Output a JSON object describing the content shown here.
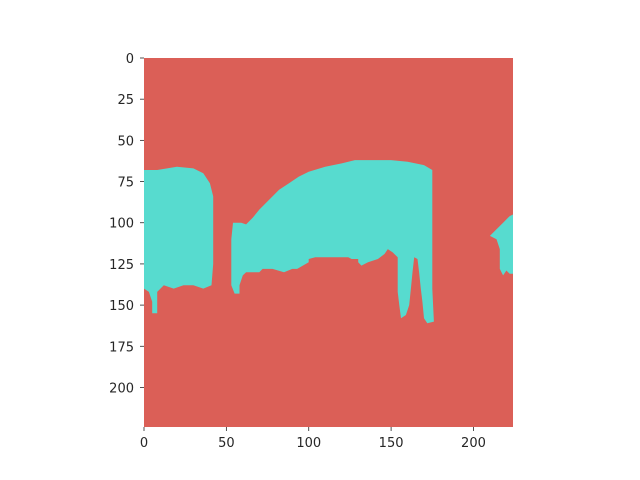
{
  "chart_data": {
    "type": "heatmap",
    "title": "",
    "xlabel": "",
    "ylabel": "",
    "xlim": [
      0,
      224
    ],
    "ylim": [
      224,
      0
    ],
    "grid": false,
    "legend": "none",
    "x_ticks": [
      0,
      50,
      100,
      150,
      200
    ],
    "y_ticks": [
      0,
      25,
      50,
      75,
      100,
      125,
      150,
      175,
      200
    ],
    "classes": [
      {
        "value": 0,
        "color": "#db5f57"
      },
      {
        "value": 1,
        "color": "#57dbcf"
      }
    ],
    "regions": [
      {
        "class": 1,
        "polygon": [
          [
            0,
            68
          ],
          [
            8,
            68
          ],
          [
            14,
            67
          ],
          [
            20,
            66
          ],
          [
            30,
            67
          ],
          [
            36,
            70
          ],
          [
            40,
            76
          ],
          [
            42,
            84
          ],
          [
            42,
            100
          ],
          [
            42,
            125
          ],
          [
            41,
            138
          ],
          [
            36,
            140
          ],
          [
            30,
            138
          ],
          [
            24,
            138
          ],
          [
            18,
            140
          ],
          [
            12,
            138
          ],
          [
            8,
            142
          ],
          [
            8,
            155
          ],
          [
            5,
            155
          ],
          [
            5,
            148
          ],
          [
            3,
            142
          ],
          [
            0,
            140
          ]
        ]
      },
      {
        "class": 1,
        "polygon": [
          [
            54,
            100
          ],
          [
            59,
            100
          ],
          [
            62,
            101
          ],
          [
            66,
            97
          ],
          [
            70,
            92
          ],
          [
            74,
            88
          ],
          [
            78,
            84
          ],
          [
            82,
            80
          ],
          [
            88,
            76
          ],
          [
            94,
            72
          ],
          [
            100,
            69
          ],
          [
            110,
            66
          ],
          [
            120,
            64
          ],
          [
            128,
            62
          ],
          [
            140,
            62
          ],
          [
            150,
            62
          ],
          [
            160,
            63
          ],
          [
            170,
            65
          ],
          [
            175,
            68
          ],
          [
            175,
            100
          ],
          [
            175,
            140
          ],
          [
            176,
            160
          ],
          [
            172,
            161
          ],
          [
            170,
            158
          ],
          [
            169,
            148
          ],
          [
            168,
            140
          ],
          [
            167,
            130
          ],
          [
            166,
            122
          ],
          [
            164,
            121
          ],
          [
            163,
            130
          ],
          [
            162,
            140
          ],
          [
            161,
            150
          ],
          [
            159,
            156
          ],
          [
            156,
            158
          ],
          [
            155,
            150
          ],
          [
            154,
            142
          ],
          [
            154,
            130
          ],
          [
            154,
            121
          ],
          [
            151,
            118
          ],
          [
            148,
            116
          ],
          [
            146,
            119
          ],
          [
            142,
            122
          ],
          [
            136,
            124
          ],
          [
            132,
            126
          ],
          [
            130,
            124
          ],
          [
            130,
            122
          ],
          [
            126,
            122
          ],
          [
            124,
            121
          ],
          [
            111,
            121
          ],
          [
            104,
            121
          ],
          [
            100,
            122
          ],
          [
            100,
            124
          ],
          [
            93,
            128
          ],
          [
            90,
            128
          ],
          [
            85,
            130
          ],
          [
            78,
            128
          ],
          [
            72,
            128
          ],
          [
            70,
            130
          ],
          [
            62,
            130
          ],
          [
            60,
            132
          ],
          [
            58,
            138
          ],
          [
            58,
            143
          ],
          [
            55,
            143
          ],
          [
            53,
            138
          ],
          [
            53,
            125
          ],
          [
            53,
            110
          ]
        ]
      },
      {
        "class": 1,
        "polygon": [
          [
            210,
            108
          ],
          [
            214,
            104
          ],
          [
            218,
            100
          ],
          [
            222,
            96
          ],
          [
            224,
            95
          ],
          [
            224,
            131
          ],
          [
            222,
            131
          ],
          [
            220,
            129
          ],
          [
            218,
            132
          ],
          [
            216,
            128
          ],
          [
            216,
            116
          ],
          [
            214,
            110
          ]
        ]
      }
    ]
  }
}
